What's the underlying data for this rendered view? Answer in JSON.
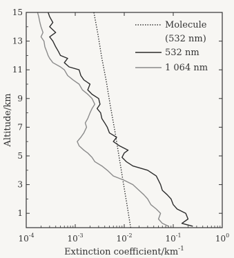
{
  "chart_data": {
    "type": "line",
    "xlabel": "Extinction coefficient/km",
    "xlabel_sup": "-1",
    "ylabel": "Altitude/km",
    "xscale": "log",
    "xlim": [
      0.0001,
      1
    ],
    "ylim": [
      0,
      15
    ],
    "x_ticks": [
      0.0001,
      0.001,
      0.01,
      0.1,
      1
    ],
    "x_tick_labels": [
      {
        "base": "10",
        "exp": "-4"
      },
      {
        "base": "10",
        "exp": "-3"
      },
      {
        "base": "10",
        "exp": "-2"
      },
      {
        "base": "10",
        "exp": "-1"
      },
      {
        "base": "10",
        "exp": "0"
      }
    ],
    "y_ticks": [
      1,
      3,
      5,
      7,
      9,
      11,
      13,
      15
    ],
    "y_tick_labels": [
      "1",
      "3",
      "5",
      "7",
      "9",
      "11",
      "13",
      "15"
    ],
    "grid": false,
    "legend_position": "top-right",
    "series": [
      {
        "name": "Molecule",
        "name_line2": "(532 nm)",
        "style": "dotted",
        "color": "#333333",
        "x": [
          0.0135,
          0.0115,
          0.0095,
          0.0078,
          0.0064,
          0.0052,
          0.0043,
          0.0035,
          0.0029,
          0.0024
        ],
        "y": [
          0,
          1.5,
          3.2,
          5,
          6.8,
          8.5,
          10.2,
          11.8,
          13.5,
          15
        ]
      },
      {
        "name": "532 nm",
        "style": "solid",
        "color": "#2b2b2b",
        "x": [
          0.25,
          0.15,
          0.2,
          0.18,
          0.12,
          0.1,
          0.09,
          0.075,
          0.06,
          0.055,
          0.05,
          0.045,
          0.03,
          0.015,
          0.011,
          0.009,
          0.01,
          0.012,
          0.008,
          0.006,
          0.007,
          0.005,
          0.0045,
          0.004,
          0.0035,
          0.0033,
          0.0028,
          0.0032,
          0.003,
          0.0022,
          0.0018,
          0.002,
          0.0015,
          0.0013,
          0.0012,
          0.00075,
          0.0006,
          0.0007,
          0.0005,
          0.00045,
          0.0004,
          0.00035,
          0.0003,
          0.0004,
          0.0003,
          0.00035,
          0.0003,
          0.00028
        ],
        "y": [
          0.1,
          0.3,
          0.6,
          1,
          1.3,
          1.6,
          2,
          2.3,
          2.6,
          3,
          3.3,
          3.6,
          4,
          4.3,
          4.6,
          4.9,
          5.2,
          5.4,
          5.7,
          6,
          6.3,
          6.6,
          7,
          7.3,
          7.6,
          8,
          8.3,
          8.6,
          9,
          9.3,
          9.6,
          10,
          10.3,
          10.6,
          11,
          11.2,
          11.5,
          11.8,
          12,
          12.3,
          12.6,
          13,
          13.3,
          13.6,
          14,
          14.3,
          14.7,
          15
        ]
      },
      {
        "name": "1 064 nm",
        "style": "solid",
        "color": "#8a8a8a",
        "x": [
          0.08,
          0.06,
          0.05,
          0.055,
          0.045,
          0.035,
          0.03,
          0.025,
          0.02,
          0.015,
          0.01,
          0.006,
          0.0045,
          0.0035,
          0.0025,
          0.0022,
          0.0018,
          0.0015,
          0.0012,
          0.0011,
          0.0013,
          0.0015,
          0.0017,
          0.0016,
          0.0018,
          0.002,
          0.0022,
          0.0025,
          0.0022,
          0.0018,
          0.0014,
          0.0012,
          0.0009,
          0.0007,
          0.0006,
          0.0005,
          0.00035,
          0.0003,
          0.00028,
          0.00026,
          0.00024,
          0.00023,
          0.0002,
          0.00022,
          0.0002,
          0.00019,
          0.00018,
          0.00017
        ],
        "y": [
          0.1,
          0.3,
          0.6,
          1,
          1.3,
          1.6,
          2,
          2.3,
          2.6,
          3,
          3.3,
          3.6,
          4,
          4.3,
          4.6,
          4.9,
          5.2,
          5.4,
          5.7,
          6,
          6.3,
          6.6,
          7,
          7.3,
          7.6,
          8,
          8.3,
          8.6,
          9,
          9.3,
          9.6,
          10,
          10.3,
          10.6,
          11,
          11.2,
          11.5,
          11.8,
          12,
          12.3,
          12.6,
          13,
          13.3,
          13.6,
          14,
          14.3,
          14.7,
          15
        ]
      }
    ]
  }
}
